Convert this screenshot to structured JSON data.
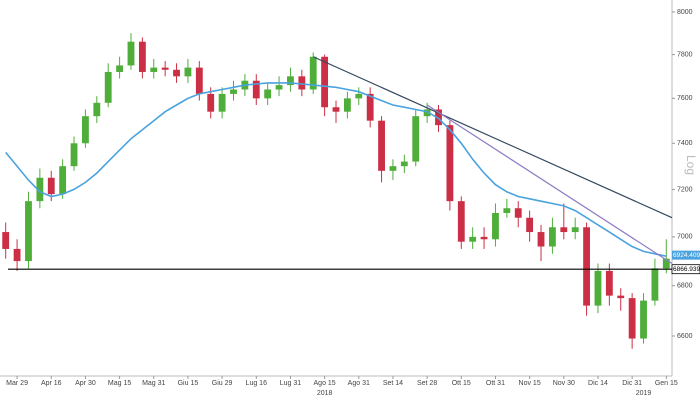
{
  "chart_data": {
    "type": "candlestick",
    "log_scale": true,
    "y_axis_label": "Log",
    "categories": [
      null,
      "Mar 29",
      null,
      null,
      "Apr 16",
      null,
      null,
      "Apr 30",
      null,
      null,
      "Mag 15",
      null,
      null,
      "Mag 31",
      null,
      null,
      "Giu 15",
      null,
      null,
      "Giu 29",
      null,
      null,
      "Lug 16",
      null,
      null,
      "Lug 31",
      null,
      null,
      "Ago 15",
      null,
      null,
      "Ago 31",
      null,
      null,
      "Set 14",
      null,
      null,
      "Set 28",
      null,
      null,
      "Ott 15",
      null,
      null,
      "Ott 31",
      null,
      null,
      "Nov 15",
      null,
      null,
      "Nov 30",
      null,
      null,
      "Dic 14",
      null,
      null,
      "Dic 31",
      null,
      null,
      "Gen 15"
    ],
    "years": [
      {
        "label": "2018",
        "category": 28
      },
      {
        "label": "2019",
        "category": 56
      }
    ],
    "open": [
      7020,
      6950,
      6900,
      7150,
      7250,
      7180,
      7300,
      7400,
      7520,
      7580,
      7720,
      7750,
      7860,
      7720,
      7740,
      7730,
      7700,
      7740,
      7620,
      7540,
      7620,
      7640,
      7680,
      7600,
      7640,
      7660,
      7700,
      7640,
      7790,
      7560,
      7540,
      7600,
      7620,
      7500,
      7280,
      7300,
      7320,
      7520,
      7550,
      7480,
      7150,
      6980,
      7000,
      6990,
      7100,
      7120,
      7080,
      7020,
      6960,
      7040,
      7020,
      7040,
      6720,
      6860,
      6760,
      6750,
      6590,
      6740,
      6870
    ],
    "high": [
      7060,
      6990,
      7190,
      7290,
      7280,
      7330,
      7430,
      7550,
      7610,
      7760,
      7790,
      7900,
      7880,
      7780,
      7770,
      7760,
      7780,
      7770,
      7650,
      7650,
      7680,
      7710,
      7710,
      7670,
      7700,
      7740,
      7730,
      7810,
      7800,
      7590,
      7630,
      7650,
      7650,
      7520,
      7330,
      7350,
      7550,
      7580,
      7570,
      7500,
      7170,
      7040,
      7040,
      7140,
      7160,
      7150,
      7110,
      7050,
      7080,
      7140,
      7080,
      7060,
      6890,
      6890,
      6790,
      6770,
      6770,
      6910,
      6990
    ],
    "low": [
      6910,
      6860,
      6870,
      7120,
      7150,
      7160,
      7280,
      7380,
      7490,
      7560,
      7690,
      7730,
      7690,
      7690,
      7700,
      7670,
      7670,
      7590,
      7510,
      7510,
      7590,
      7610,
      7570,
      7570,
      7610,
      7630,
      7610,
      7620,
      7520,
      7490,
      7510,
      7570,
      7470,
      7230,
      7240,
      7270,
      7300,
      7490,
      7450,
      7110,
      6950,
      6950,
      6950,
      6960,
      7080,
      7040,
      6980,
      6900,
      6930,
      6990,
      6990,
      6680,
      6690,
      6720,
      6700,
      6550,
      6570,
      6720,
      6850
    ],
    "close": [
      6950,
      6900,
      7150,
      7250,
      7180,
      7300,
      7400,
      7520,
      7580,
      7720,
      7750,
      7860,
      7720,
      7740,
      7730,
      7700,
      7740,
      7620,
      7540,
      7620,
      7640,
      7680,
      7600,
      7640,
      7660,
      7700,
      7640,
      7790,
      7560,
      7540,
      7600,
      7620,
      7500,
      7280,
      7300,
      7320,
      7520,
      7550,
      7480,
      7150,
      6980,
      7000,
      6990,
      7100,
      7120,
      7080,
      7020,
      6960,
      7040,
      7020,
      7040,
      6720,
      6860,
      6760,
      6750,
      6590,
      6740,
      6870,
      6910
    ],
    "up_color": "#4fae3a",
    "down_color": "#cc2f45",
    "moving_average": {
      "color": "#4aa3df",
      "last": 6924.4099,
      "values": [
        7360,
        7300,
        7240,
        7190,
        7170,
        7180,
        7200,
        7230,
        7270,
        7320,
        7370,
        7420,
        7460,
        7500,
        7540,
        7570,
        7600,
        7620,
        7630,
        7640,
        7650,
        7660,
        7665,
        7670,
        7670,
        7670,
        7665,
        7660,
        7655,
        7650,
        7640,
        7630,
        7610,
        7590,
        7570,
        7560,
        7550,
        7540,
        7510,
        7460,
        7400,
        7330,
        7270,
        7220,
        7190,
        7170,
        7160,
        7150,
        7140,
        7130,
        7110,
        7080,
        7050,
        7020,
        6990,
        6960,
        6940,
        6930,
        6920
      ]
    },
    "trendlines": [
      {
        "color": "#34495e",
        "x": [
          27,
          58.5
        ],
        "values": [
          7790,
          7080
        ]
      },
      {
        "color": "#8e7cc3",
        "x": [
          37,
          58.5
        ],
        "values": [
          7570,
          6890
        ]
      }
    ],
    "level": {
      "value": 6866.9399,
      "color": "#000000"
    },
    "ylim": [
      6445,
      8057
    ],
    "yticks": [
      6600,
      6800,
      7000,
      7200,
      7400,
      7600,
      7800,
      8000
    ]
  }
}
